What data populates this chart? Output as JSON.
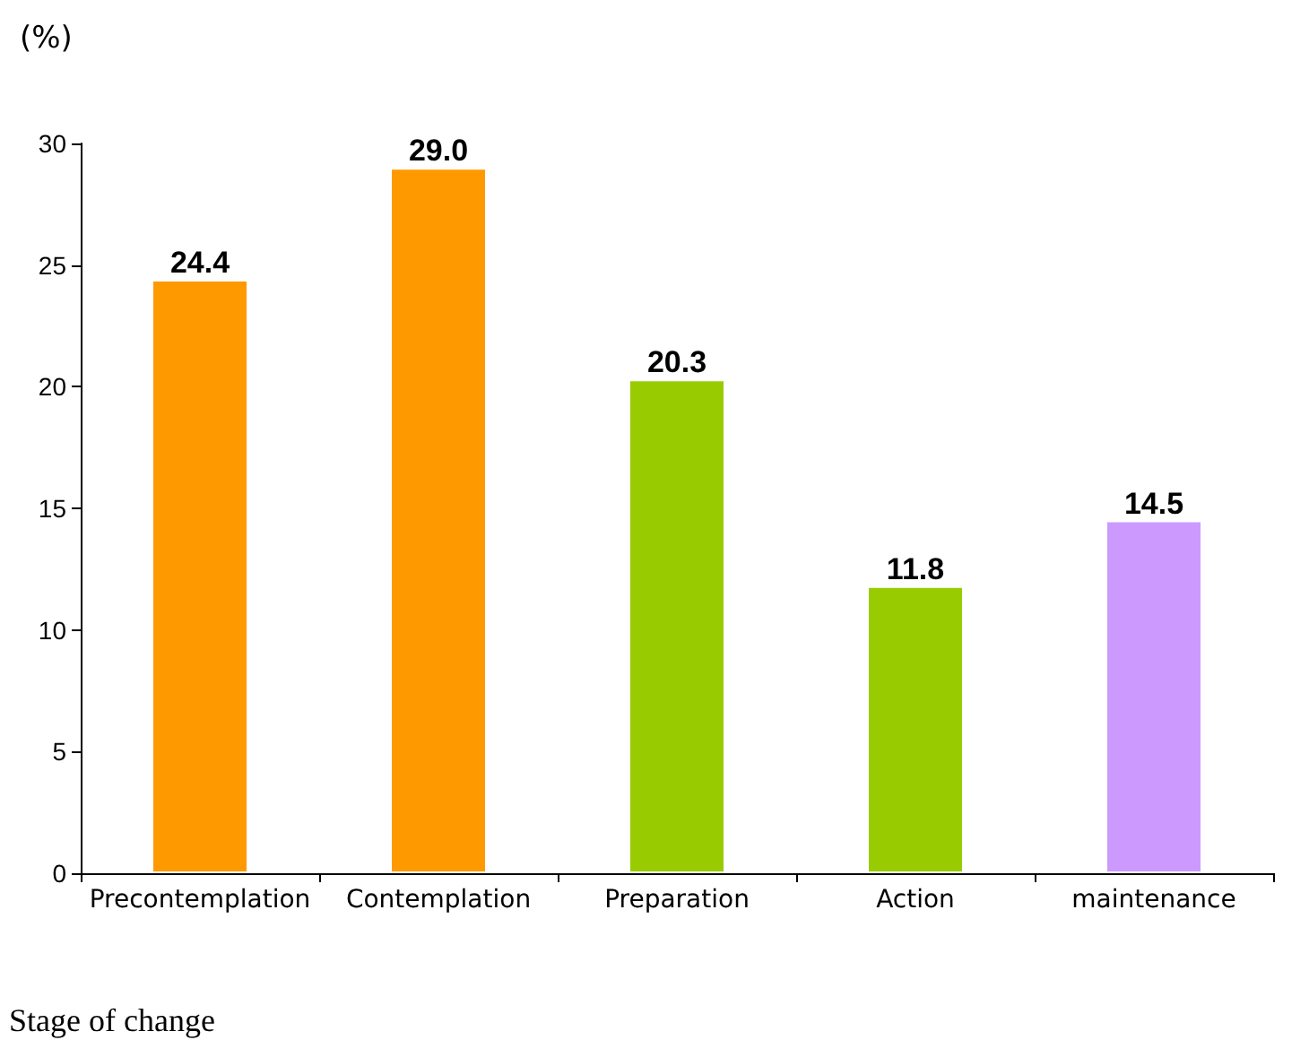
{
  "chart_data": {
    "type": "bar",
    "ylabel": "(%)",
    "xlabel": "Stage of change",
    "categories": [
      "Precontemplation",
      "Contemplation",
      "Preparation",
      "Action",
      "maintenance"
    ],
    "values": [
      24.4,
      29.0,
      20.3,
      11.8,
      14.5
    ],
    "colors": [
      "#ff9900",
      "#ff9900",
      "#99cc00",
      "#99cc00",
      "#cc99ff"
    ],
    "value_labels": [
      "24.4",
      "29.0",
      "20.3",
      "11.8",
      "14.5"
    ],
    "ylim": [
      0,
      30
    ],
    "yticks": [
      0,
      5,
      10,
      15,
      20,
      25,
      30
    ],
    "grid": false
  }
}
